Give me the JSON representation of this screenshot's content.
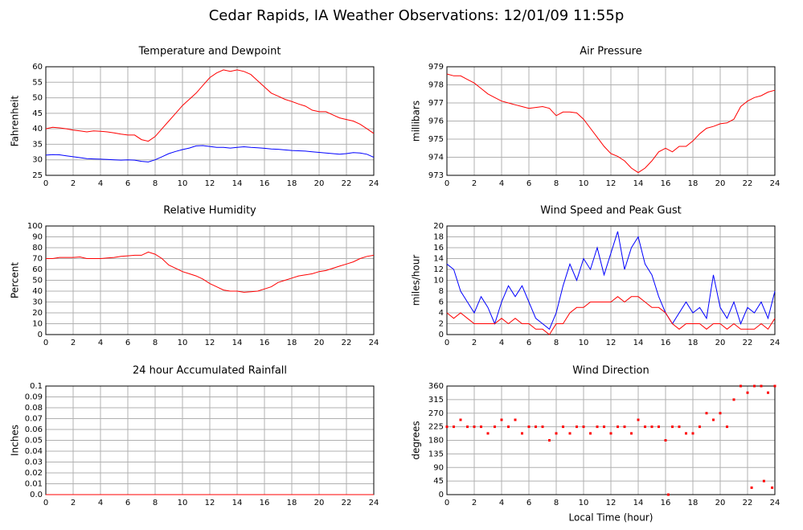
{
  "title": "Cedar Rapids, IA Weather Observations: 12/01/09 11:55p",
  "chart_data": [
    {
      "type": "line",
      "title": "Temperature and Dewpoint",
      "y_label": "Fahrenheit",
      "x": [
        0,
        0.5,
        1,
        1.5,
        2,
        2.5,
        3,
        3.5,
        4,
        4.5,
        5,
        5.5,
        6,
        6.5,
        7,
        7.5,
        8,
        8.5,
        9,
        9.5,
        10,
        10.5,
        11,
        11.5,
        12,
        12.5,
        13,
        13.5,
        14,
        14.5,
        15,
        15.5,
        16,
        16.5,
        17,
        17.5,
        18,
        18.5,
        19,
        19.5,
        20,
        20.5,
        21,
        21.5,
        22,
        22.5,
        23,
        23.5,
        24
      ],
      "series": [
        {
          "color": "#ff0000",
          "values": [
            40,
            40.5,
            40.3,
            40,
            39.6,
            39.3,
            39,
            39.3,
            39.2,
            39,
            38.7,
            38.3,
            38,
            38,
            36.5,
            36,
            37.5,
            40,
            42.5,
            45,
            47.5,
            49.5,
            51.5,
            54,
            56.5,
            58,
            59,
            58.5,
            59,
            58.5,
            57.5,
            55.5,
            53.5,
            51.5,
            50.5,
            49.5,
            48.8,
            48,
            47.3,
            46,
            45.5,
            45.5,
            44.5,
            43.5,
            43,
            42.5,
            41.5,
            40,
            38.5
          ]
        },
        {
          "color": "#0000ff",
          "values": [
            31.5,
            31.7,
            31.6,
            31.3,
            31,
            30.7,
            30.4,
            30.3,
            30.2,
            30.1,
            30,
            29.9,
            30,
            29.9,
            29.5,
            29.3,
            30,
            31,
            32,
            32.7,
            33.3,
            33.8,
            34.5,
            34.6,
            34.3,
            34,
            34,
            33.8,
            34,
            34.2,
            34,
            33.9,
            33.7,
            33.5,
            33.4,
            33.2,
            33,
            32.9,
            32.8,
            32.6,
            32.4,
            32.2,
            32,
            31.8,
            32,
            32.3,
            32.2,
            31.8,
            30.8
          ]
        }
      ],
      "xlim": [
        0,
        24
      ],
      "xticks": [
        0,
        2,
        4,
        6,
        8,
        10,
        12,
        14,
        16,
        18,
        20,
        22,
        24
      ],
      "ylim": [
        25,
        60
      ],
      "yticks": [
        25,
        30,
        35,
        40,
        45,
        50,
        55,
        60
      ],
      "grid": true
    },
    {
      "type": "line",
      "title": "Air Pressure",
      "y_label": "millibars",
      "x": [
        0,
        0.5,
        1,
        1.5,
        2,
        2.5,
        3,
        3.5,
        4,
        4.5,
        5,
        5.5,
        6,
        6.5,
        7,
        7.5,
        8,
        8.5,
        9,
        9.5,
        10,
        10.5,
        11,
        11.5,
        12,
        12.5,
        13,
        13.5,
        14,
        14.5,
        15,
        15.5,
        16,
        16.5,
        17,
        17.5,
        18,
        18.5,
        19,
        19.5,
        20,
        20.5,
        21,
        21.5,
        22,
        22.5,
        23,
        23.5,
        24
      ],
      "series": [
        {
          "color": "#ff0000",
          "values": [
            978.6,
            978.5,
            978.5,
            978.3,
            978.1,
            977.8,
            977.5,
            977.3,
            977.1,
            977,
            976.9,
            976.8,
            976.7,
            976.75,
            976.8,
            976.7,
            976.3,
            976.5,
            976.5,
            976.45,
            976.1,
            975.6,
            975.1,
            974.6,
            974.2,
            974.05,
            973.8,
            973.4,
            973.15,
            973.4,
            973.8,
            974.3,
            974.5,
            974.3,
            974.6,
            974.6,
            974.9,
            975.3,
            975.6,
            975.7,
            975.85,
            975.9,
            976.1,
            976.8,
            977.1,
            977.3,
            977.4,
            977.6,
            977.7
          ]
        }
      ],
      "xlim": [
        0,
        24
      ],
      "xticks": [
        0,
        2,
        4,
        6,
        8,
        10,
        12,
        14,
        16,
        18,
        20,
        22,
        24
      ],
      "ylim": [
        973,
        979
      ],
      "yticks": [
        973,
        974,
        975,
        976,
        977,
        978,
        979
      ],
      "grid": true
    },
    {
      "type": "line",
      "title": "Relative Humidity",
      "y_label": "Percent",
      "x": [
        0,
        0.5,
        1,
        1.5,
        2,
        2.5,
        3,
        3.5,
        4,
        4.5,
        5,
        5.5,
        6,
        6.5,
        7,
        7.5,
        8,
        8.5,
        9,
        9.5,
        10,
        10.5,
        11,
        11.5,
        12,
        12.5,
        13,
        13.5,
        14,
        14.5,
        15,
        15.5,
        16,
        16.5,
        17,
        17.5,
        18,
        18.5,
        19,
        19.5,
        20,
        20.5,
        21,
        21.5,
        22,
        22.5,
        23,
        23.5,
        24
      ],
      "series": [
        {
          "color": "#ff0000",
          "values": [
            70,
            70,
            71,
            71,
            71,
            71.5,
            70,
            70,
            70,
            70.5,
            71,
            72,
            72.5,
            73,
            73,
            76,
            74,
            70,
            64,
            61,
            58,
            56,
            54,
            51,
            47,
            44,
            41,
            40,
            40,
            39,
            39.5,
            40,
            42,
            44,
            48,
            50,
            52,
            54,
            55,
            56,
            58,
            59,
            61,
            63,
            65,
            67,
            70,
            72,
            73
          ]
        }
      ],
      "xlim": [
        0,
        24
      ],
      "xticks": [
        0,
        2,
        4,
        6,
        8,
        10,
        12,
        14,
        16,
        18,
        20,
        22,
        24
      ],
      "ylim": [
        0,
        100
      ],
      "yticks": [
        0,
        10,
        20,
        30,
        40,
        50,
        60,
        70,
        80,
        90,
        100
      ],
      "grid": true
    },
    {
      "type": "line",
      "title": "Wind Speed and Peak Gust",
      "y_label": "miles/hour",
      "x": [
        0,
        0.5,
        1,
        1.5,
        2,
        2.5,
        3,
        3.5,
        4,
        4.5,
        5,
        5.5,
        6,
        6.5,
        7,
        7.5,
        8,
        8.5,
        9,
        9.5,
        10,
        10.5,
        11,
        11.5,
        12,
        12.5,
        13,
        13.5,
        14,
        14.5,
        15,
        15.5,
        16,
        16.5,
        17,
        17.5,
        18,
        18.5,
        19,
        19.5,
        20,
        20.5,
        21,
        21.5,
        22,
        22.5,
        23,
        23.5,
        24
      ],
      "series": [
        {
          "color": "#0000ff",
          "values": [
            13,
            12,
            8,
            6,
            4,
            7,
            5,
            2,
            6,
            9,
            7,
            9,
            6,
            3,
            2,
            1,
            4,
            9,
            13,
            10,
            14,
            12,
            16,
            11,
            15,
            19,
            12,
            16,
            18,
            13,
            11,
            7,
            4,
            2,
            4,
            6,
            4,
            5,
            3,
            11,
            5,
            3,
            6,
            2,
            5,
            4,
            6,
            3,
            8
          ]
        },
        {
          "color": "#ff0000",
          "values": [
            4,
            3,
            4,
            3,
            2,
            2,
            2,
            2,
            3,
            2,
            3,
            2,
            2,
            1,
            1,
            0,
            2,
            2,
            4,
            5,
            5,
            6,
            6,
            6,
            6,
            7,
            6,
            7,
            7,
            6,
            5,
            5,
            4,
            2,
            1,
            2,
            2,
            2,
            1,
            2,
            2,
            1,
            2,
            1,
            1,
            1,
            2,
            1,
            3
          ]
        }
      ],
      "xlim": [
        0,
        24
      ],
      "xticks": [
        0,
        2,
        4,
        6,
        8,
        10,
        12,
        14,
        16,
        18,
        20,
        22,
        24
      ],
      "ylim": [
        0,
        20
      ],
      "yticks": [
        0,
        2,
        4,
        6,
        8,
        10,
        12,
        14,
        16,
        18,
        20
      ],
      "grid": true
    },
    {
      "type": "line",
      "title": "24 hour Accumulated Rainfall",
      "y_label": "Inches",
      "x": [
        0,
        24
      ],
      "series": [
        {
          "color": "#ff0000",
          "values": [
            0,
            0
          ]
        }
      ],
      "xlim": [
        0,
        24
      ],
      "xticks": [
        0,
        2,
        4,
        6,
        8,
        10,
        12,
        14,
        16,
        18,
        20,
        22,
        24
      ],
      "ylim": [
        0,
        0.1
      ],
      "yticks": [
        {
          "value": 0,
          "label": "0.0"
        },
        0.01,
        0.02,
        0.03,
        0.04,
        0.05,
        0.06,
        0.07,
        0.08,
        0.09,
        0.1
      ],
      "grid": true
    },
    {
      "type": "scatter",
      "title": "Wind Direction",
      "y_label": "degrees",
      "x_label": "Local Time (hour)",
      "x": [
        0,
        0.5,
        1,
        1.5,
        2,
        2.5,
        3,
        3.5,
        4,
        4.5,
        5,
        5.5,
        6,
        6.5,
        7,
        7.5,
        8,
        8.5,
        9,
        9.5,
        10,
        10.5,
        11,
        11.5,
        12,
        12.5,
        13,
        13.5,
        14,
        14.5,
        15,
        15.5,
        16,
        16.2,
        16.5,
        17,
        17.5,
        18,
        18.5,
        19,
        19.5,
        20,
        20.5,
        21,
        21.5,
        22,
        22.3,
        22.5,
        23,
        23.2,
        23.5,
        23.8,
        24
      ],
      "series": [
        {
          "color": "#ff0000",
          "values": [
            225,
            225,
            248,
            225,
            225,
            225,
            203,
            225,
            248,
            225,
            248,
            203,
            225,
            225,
            225,
            180,
            203,
            225,
            203,
            225,
            225,
            203,
            225,
            225,
            203,
            225,
            225,
            203,
            248,
            225,
            225,
            225,
            180,
            0,
            225,
            225,
            203,
            203,
            225,
            270,
            248,
            270,
            225,
            315,
            360,
            338,
            23,
            360,
            360,
            45,
            338,
            23,
            360
          ]
        }
      ],
      "xlim": [
        0,
        24
      ],
      "xticks": [
        0,
        2,
        4,
        6,
        8,
        10,
        12,
        14,
        16,
        18,
        20,
        22,
        24
      ],
      "ylim": [
        0,
        360
      ],
      "yticks": [
        0,
        45,
        90,
        135,
        180,
        225,
        270,
        315,
        360
      ],
      "grid": true
    }
  ]
}
